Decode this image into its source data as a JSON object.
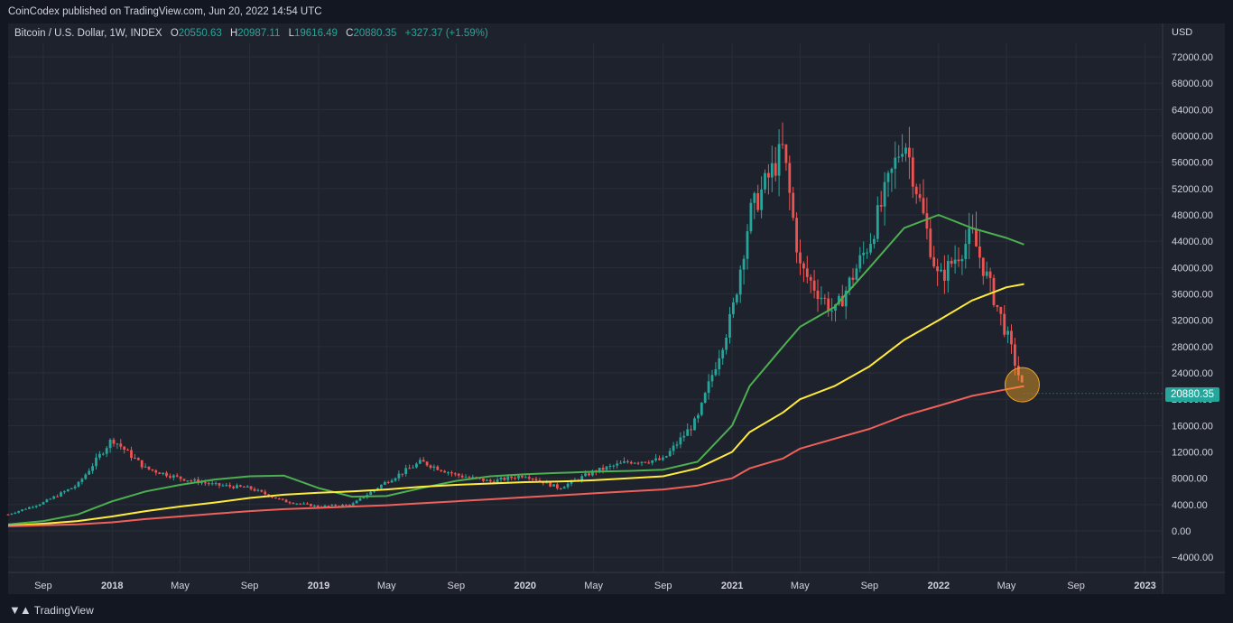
{
  "publish_line": "CoinCodex published on TradingView.com, Jun 20, 2022 14:54 UTC",
  "legend": {
    "symbol": "Bitcoin / U.S. Dollar, 1W, INDEX",
    "o_label": "O",
    "o_value": "20550.63",
    "h_label": "H",
    "h_value": "20987.11",
    "l_label": "L",
    "l_value": "19616.49",
    "c_label": "C",
    "c_value": "20880.35",
    "change": "+327.37 (+1.59%)"
  },
  "price_axis": {
    "currency": "USD",
    "ticks": [
      "72000.00",
      "68000.00",
      "64000.00",
      "60000.00",
      "56000.00",
      "52000.00",
      "48000.00",
      "44000.00",
      "40000.00",
      "36000.00",
      "32000.00",
      "28000.00",
      "24000.00",
      "20000.00",
      "16000.00",
      "12000.00",
      "8000.00",
      "4000.00",
      "0.00",
      "−4000.00"
    ],
    "last_price": "20880.35"
  },
  "time_axis": {
    "ticks": [
      {
        "label": "Sep",
        "bold": false
      },
      {
        "label": "2018",
        "bold": true
      },
      {
        "label": "May",
        "bold": false
      },
      {
        "label": "Sep",
        "bold": false
      },
      {
        "label": "2019",
        "bold": true
      },
      {
        "label": "May",
        "bold": false
      },
      {
        "label": "Sep",
        "bold": false
      },
      {
        "label": "2020",
        "bold": true
      },
      {
        "label": "May",
        "bold": false
      },
      {
        "label": "Sep",
        "bold": false
      },
      {
        "label": "2021",
        "bold": true
      },
      {
        "label": "May",
        "bold": false
      },
      {
        "label": "Sep",
        "bold": false
      },
      {
        "label": "2022",
        "bold": true
      },
      {
        "label": "May",
        "bold": false
      },
      {
        "label": "Sep",
        "bold": false
      },
      {
        "label": "2023",
        "bold": true
      }
    ]
  },
  "footer": {
    "brand": "TradingView"
  },
  "colors": {
    "up": "#26a69a",
    "down": "#ef5350",
    "ma_green": "#4caf50",
    "ma_yellow": "#ffeb3b",
    "ma_red": "#f0605a",
    "highlight": "#f5a623"
  },
  "chart_data": {
    "type": "line",
    "ylim": [
      -6000,
      74000
    ],
    "x": [
      "2017-07",
      "2017-09",
      "2017-11",
      "2018-01",
      "2018-03",
      "2018-05",
      "2018-07",
      "2018-09",
      "2018-11",
      "2019-01",
      "2019-03",
      "2019-05",
      "2019-07",
      "2019-09",
      "2019-11",
      "2020-01",
      "2020-03",
      "2020-05",
      "2020-07",
      "2020-09",
      "2020-11",
      "2021-01",
      "2021-02",
      "2021-04",
      "2021-05",
      "2021-07",
      "2021-09",
      "2021-11",
      "2022-01",
      "2022-03",
      "2022-05",
      "2022-06"
    ],
    "series": [
      {
        "values": [
          2500,
          4300,
          7000,
          14000,
          9500,
          8000,
          7000,
          6500,
          4500,
          3700,
          4000,
          7500,
          10500,
          8500,
          7500,
          8500,
          6500,
          9000,
          10500,
          10800,
          17000,
          33000,
          48000,
          58000,
          40000,
          33000,
          44000,
          60000,
          38000,
          45000,
          30000,
          20880
        ]
      },
      {
        "values": [
          1000,
          1500,
          2500,
          4500,
          6000,
          7000,
          7800,
          8300,
          8400,
          6500,
          5200,
          5300,
          6500,
          7600,
          8300,
          8600,
          8800,
          9000,
          9100,
          9300,
          10500,
          16000,
          22000,
          28000,
          31000,
          34000,
          40000,
          46000,
          48000,
          46000,
          44500,
          43500
        ]
      },
      {
        "values": [
          800,
          1100,
          1500,
          2200,
          3000,
          3700,
          4300,
          5000,
          5500,
          5800,
          6000,
          6300,
          6700,
          7000,
          7200,
          7400,
          7500,
          7700,
          8000,
          8300,
          9500,
          12000,
          15000,
          18000,
          20000,
          22000,
          25000,
          29000,
          32000,
          35000,
          37000,
          37500
        ]
      },
      {
        "values": [
          700,
          850,
          1000,
          1300,
          1800,
          2200,
          2600,
          3000,
          3300,
          3500,
          3700,
          3900,
          4200,
          4500,
          4800,
          5100,
          5400,
          5700,
          6000,
          6300,
          6900,
          8000,
          9500,
          11000,
          12500,
          14000,
          15500,
          17500,
          19000,
          20500,
          21500,
          22000
        ]
      }
    ]
  }
}
